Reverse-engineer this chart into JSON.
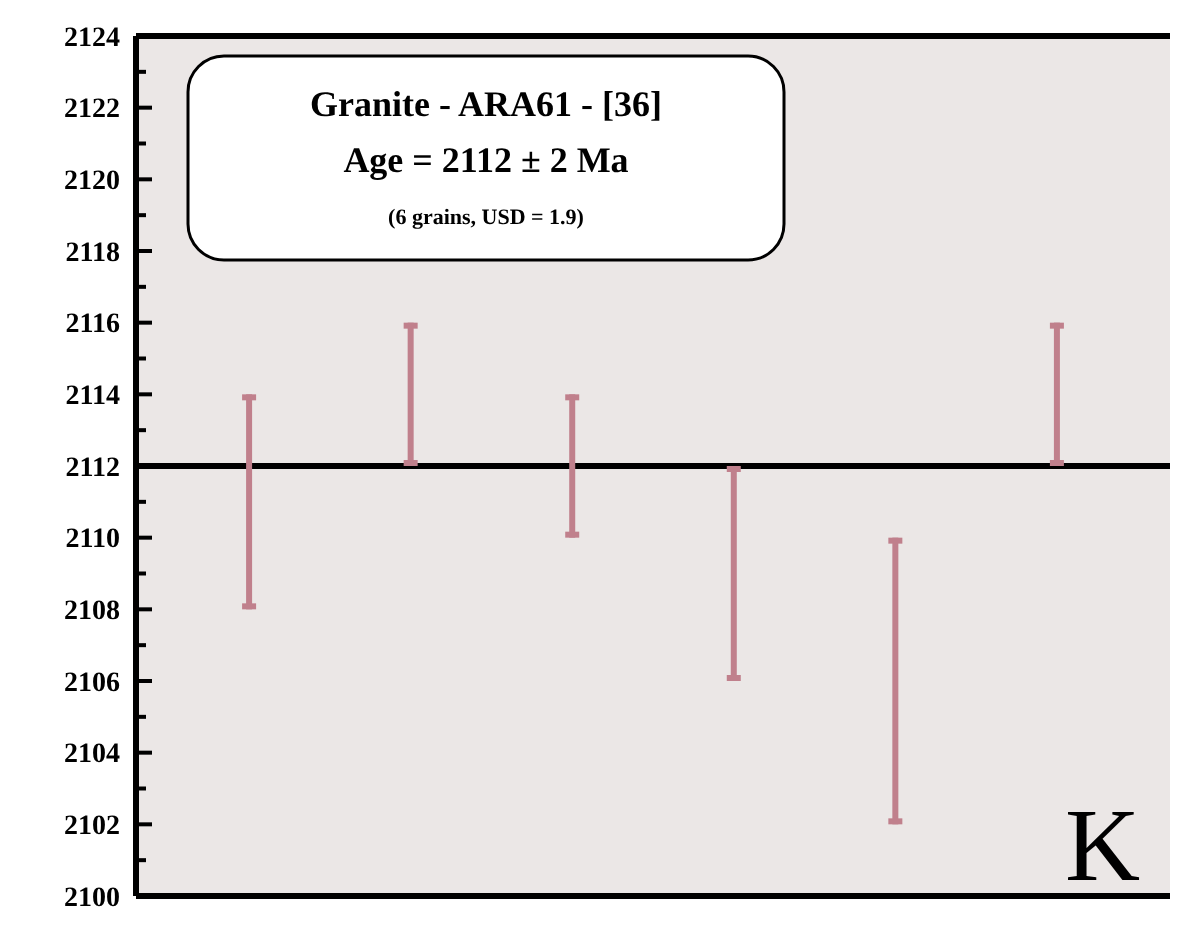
{
  "chart_data": {
    "type": "bar",
    "title": "Granite - ARA61 - [36]",
    "subtitle": "Age = 2112 ± 2 Ma",
    "annotations": [
      "(6 grains, USD = 1.9)",
      "K"
    ],
    "categories": [
      null,
      null,
      null,
      null,
      null,
      null
    ],
    "series": [
      {
        "color": "#c0808c",
        "values": [
          6,
          4,
          4,
          6,
          8,
          4
        ],
        "base": [
          2108,
          2112,
          2110,
          2106,
          2102,
          2112
        ]
      }
    ],
    "ylim": [
      2100,
      2124
    ],
    "yticks": [
      2100,
      {
        "value": 2101,
        "label": null
      },
      2102,
      {
        "value": 2103,
        "label": null
      },
      2104,
      {
        "value": 2105,
        "label": null
      },
      2106,
      {
        "value": 2107,
        "label": null
      },
      2108,
      {
        "value": 2109,
        "label": null
      },
      2110,
      {
        "value": 2111,
        "label": null
      },
      2112,
      {
        "value": 2113,
        "label": null
      },
      2114,
      {
        "value": 2115,
        "label": null
      },
      2116,
      {
        "value": 2117,
        "label": null
      },
      2118,
      {
        "value": 2119,
        "label": null
      },
      2120,
      {
        "value": 2121,
        "label": null
      },
      2122,
      {
        "value": 2123,
        "label": null
      },
      2124
    ],
    "ref_lines": [
      {
        "axis": "y",
        "value": 2112,
        "color": "#000000"
      }
    ],
    "tick_labels": "y",
    "grid": false
  }
}
